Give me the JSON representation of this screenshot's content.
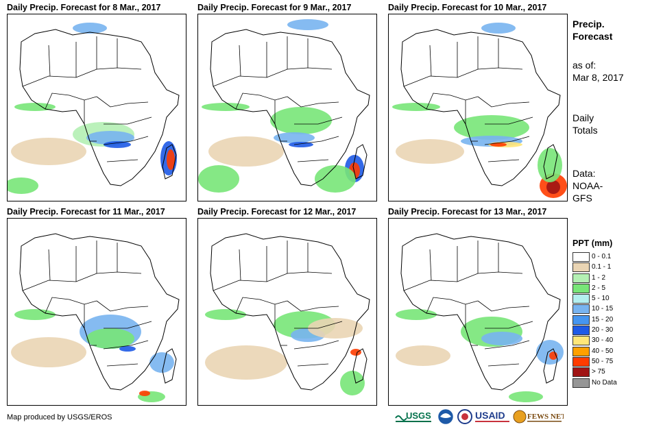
{
  "panels": [
    {
      "title": "Daily Precip. Forecast for 8 Mar., 2017"
    },
    {
      "title": "Daily Precip. Forecast for 9 Mar., 2017"
    },
    {
      "title": "Daily Precip. Forecast for 10 Mar., 2017"
    },
    {
      "title": "Daily Precip. Forecast for 11 Mar., 2017"
    },
    {
      "title": "Daily Precip. Forecast for 12 Mar., 2017"
    },
    {
      "title": "Daily Precip. Forecast for 13 Mar., 2017"
    }
  ],
  "info": {
    "heading_line1": "Precip.",
    "heading_line2": "Forecast",
    "asof_label": "as of:",
    "asof_date": "Mar 8, 2017",
    "totals_line1": "Daily",
    "totals_line2": "Totals",
    "data_label": "Data:",
    "data_line1": "NOAA-",
    "data_line2": "GFS"
  },
  "legend": {
    "title": "PPT (mm)",
    "items": [
      {
        "label": "0 - 0.1",
        "color": "#ffffff"
      },
      {
        "label": "0.1 - 1",
        "color": "#ead5b4"
      },
      {
        "label": "1 - 2",
        "color": "#b4f0b4"
      },
      {
        "label": "2 - 5",
        "color": "#78e678"
      },
      {
        "label": "5 - 10",
        "color": "#b4f0f0"
      },
      {
        "label": "10 - 15",
        "color": "#78b4f0"
      },
      {
        "label": "15 - 20",
        "color": "#4696f0"
      },
      {
        "label": "20 - 30",
        "color": "#1e5ae6"
      },
      {
        "label": "30 - 40",
        "color": "#ffe678"
      },
      {
        "label": "40 - 50",
        "color": "#ffa000"
      },
      {
        "label": "50 - 75",
        "color": "#ff3c00"
      },
      {
        "label": "> 75",
        "color": "#a01414"
      },
      {
        "label": "No Data",
        "color": "#969696"
      }
    ]
  },
  "credit": "Map produced by USGS/EROS",
  "logos": {
    "usgs": "USGS",
    "usaid": "USAID",
    "fewsnet": "FEWS NET"
  }
}
